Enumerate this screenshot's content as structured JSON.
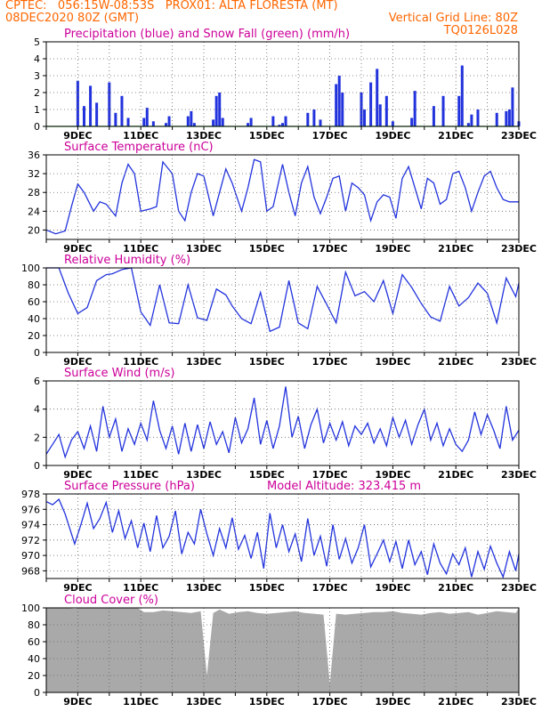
{
  "header": {
    "line1_left": "CPTEC:   056:15W-08:53S   PROX01: ALTA FLORESTA (MT)",
    "line2_left": "08DEC2020 80Z (GMT)",
    "line2_right": "Vertical Grid Line: 80Z",
    "line3_right": "TQ0126L028"
  },
  "colors": {
    "header": "#ff6600",
    "panel_title": "#cc0099",
    "series_line": "#2233dd",
    "precip_bars": "#2233dd",
    "snow_line": "#22aa22",
    "cloud_fill": "#a9a9a9"
  },
  "chart_data": [
    {
      "id": "precip",
      "type": "bar",
      "title": "Precipitation (blue) and Snow Fall (green) (mm/h)",
      "ylim": [
        0,
        5
      ],
      "yticks": [
        "0",
        "1",
        "2",
        "3",
        "4",
        "5"
      ],
      "xticks": [
        "9DEC",
        "11DEC",
        "13DEC",
        "15DEC",
        "17DEC",
        "19DEC",
        "21DEC",
        "23DEC"
      ],
      "grid": true,
      "series": [
        {
          "color": "#2233dd",
          "x": [
            9.0,
            9.2,
            9.4,
            9.6,
            10.0,
            10.2,
            10.4,
            10.6,
            11.1,
            11.2,
            11.4,
            11.8,
            11.9,
            12.5,
            12.6,
            12.7,
            13.3,
            13.4,
            13.5,
            13.6,
            14.4,
            14.5,
            15.2,
            15.4,
            15.5,
            15.6,
            16.3,
            16.5,
            16.7,
            17.2,
            17.3,
            17.4,
            18.0,
            18.1,
            18.3,
            18.5,
            18.6,
            18.8,
            19.0,
            19.6,
            19.7,
            20.3,
            20.6,
            21.1,
            21.2,
            21.4,
            21.5,
            21.7,
            22.3,
            22.6,
            22.7,
            22.8,
            23.0
          ],
          "values": [
            2.7,
            1.2,
            2.4,
            1.4,
            2.6,
            0.8,
            1.8,
            0.5,
            0.5,
            1.1,
            0.3,
            0.2,
            0.6,
            0.6,
            0.9,
            0.2,
            0.4,
            1.8,
            2.0,
            0.5,
            0.2,
            0.5,
            0.6,
            0.1,
            0.2,
            0.6,
            0.8,
            1.0,
            0.4,
            2.5,
            3.0,
            2.0,
            2.0,
            1.0,
            2.6,
            3.4,
            1.3,
            1.8,
            0.3,
            0.5,
            2.1,
            1.2,
            1.8,
            1.8,
            3.6,
            0.2,
            0.7,
            1.0,
            0.8,
            0.9,
            1.0,
            2.3,
            0.3
          ]
        },
        {
          "color": "#22aa22",
          "x": [
            8.0,
            23.0
          ],
          "values": [
            0,
            0
          ]
        }
      ]
    },
    {
      "id": "temperature",
      "type": "line",
      "title": "Surface Temperature (nC)",
      "ylim": [
        18,
        36
      ],
      "yticks": [
        "20",
        "24",
        "28",
        "32",
        "36"
      ],
      "xticks": [
        "9DEC",
        "11DEC",
        "13DEC",
        "15DEC",
        "17DEC",
        "19DEC",
        "21DEC",
        "23DEC"
      ],
      "grid": true,
      "series": [
        {
          "color": "#2233dd",
          "x": [
            8.0,
            8.3,
            8.6,
            8.8,
            9.0,
            9.2,
            9.5,
            9.7,
            9.9,
            10.2,
            10.4,
            10.6,
            10.8,
            11.0,
            11.3,
            11.5,
            11.7,
            12.0,
            12.2,
            12.4,
            12.6,
            12.8,
            13.0,
            13.3,
            13.5,
            13.7,
            13.9,
            14.2,
            14.4,
            14.6,
            14.8,
            15.0,
            15.2,
            15.5,
            15.7,
            15.9,
            16.1,
            16.3,
            16.5,
            16.7,
            16.9,
            17.1,
            17.3,
            17.5,
            17.7,
            17.9,
            18.1,
            18.3,
            18.5,
            18.7,
            18.9,
            19.1,
            19.3,
            19.5,
            19.7,
            19.9,
            20.1,
            20.3,
            20.5,
            20.7,
            20.9,
            21.1,
            21.3,
            21.5,
            21.7,
            21.9,
            22.1,
            22.3,
            22.5,
            22.7,
            23.0
          ],
          "values": [
            20.0,
            19.2,
            19.8,
            25.0,
            29.8,
            28.0,
            24.0,
            26.0,
            25.5,
            23.0,
            30.0,
            34.0,
            32.0,
            24.0,
            24.5,
            25.0,
            34.5,
            32.0,
            24.0,
            22.0,
            28.0,
            32.0,
            31.5,
            23.0,
            28.0,
            33.0,
            30.0,
            24.0,
            29.0,
            35.0,
            34.5,
            24.0,
            25.0,
            34.0,
            28.0,
            23.0,
            30.0,
            33.5,
            27.0,
            23.5,
            27.0,
            31.0,
            31.5,
            24.0,
            30.0,
            29.0,
            27.5,
            22.0,
            26.0,
            27.5,
            27.0,
            22.5,
            31.0,
            33.5,
            29.0,
            24.5,
            31.0,
            30.0,
            25.5,
            26.5,
            32.0,
            32.5,
            29.0,
            24.0,
            28.0,
            31.5,
            32.5,
            29.0,
            26.5,
            26.0,
            26.0
          ]
        }
      ]
    },
    {
      "id": "humidity",
      "type": "line",
      "title": "Relative Humidity (%)",
      "ylim": [
        0,
        100
      ],
      "yticks": [
        "0",
        "20",
        "40",
        "60",
        "80",
        "100"
      ],
      "xticks": [
        "9DEC",
        "11DEC",
        "13DEC",
        "15DEC",
        "17DEC",
        "19DEC",
        "21DEC",
        "23DEC"
      ],
      "grid": true,
      "series": [
        {
          "color": "#2233dd",
          "x": [
            8.0,
            8.4,
            8.7,
            9.0,
            9.3,
            9.6,
            9.9,
            10.1,
            10.4,
            10.7,
            11.0,
            11.3,
            11.6,
            11.9,
            12.2,
            12.5,
            12.8,
            13.1,
            13.4,
            13.7,
            13.9,
            14.2,
            14.5,
            14.8,
            15.1,
            15.4,
            15.7,
            16.0,
            16.3,
            16.6,
            16.9,
            17.2,
            17.5,
            17.8,
            18.1,
            18.4,
            18.7,
            19.0,
            19.3,
            19.6,
            19.9,
            20.2,
            20.5,
            20.8,
            21.1,
            21.4,
            21.7,
            22.0,
            22.3,
            22.6,
            22.9,
            23.0
          ],
          "values": [
            100,
            100,
            70,
            46,
            53,
            85,
            92,
            93,
            98,
            100,
            48,
            32,
            80,
            35,
            34,
            80,
            41,
            38,
            75,
            68,
            55,
            40,
            34,
            71,
            25,
            30,
            85,
            35,
            28,
            78,
            57,
            35,
            95,
            67,
            72,
            60,
            85,
            46,
            92,
            77,
            58,
            42,
            37,
            78,
            55,
            65,
            82,
            70,
            35,
            88,
            66,
            82
          ]
        }
      ]
    },
    {
      "id": "wind",
      "type": "line",
      "title": "Surface Wind (m/s)",
      "ylim": [
        0,
        6
      ],
      "yticks": [
        "0",
        "2",
        "4",
        "6"
      ],
      "xticks": [
        "9DEC",
        "11DEC",
        "13DEC",
        "15DEC",
        "17DEC",
        "19DEC",
        "21DEC",
        "23DEC"
      ],
      "grid": true,
      "series": [
        {
          "color": "#2233dd",
          "x": [
            8.0,
            8.2,
            8.4,
            8.6,
            8.8,
            9.0,
            9.2,
            9.4,
            9.6,
            9.8,
            10.0,
            10.2,
            10.4,
            10.6,
            10.8,
            11.0,
            11.2,
            11.4,
            11.6,
            11.8,
            12.0,
            12.2,
            12.4,
            12.6,
            12.8,
            13.0,
            13.2,
            13.4,
            13.6,
            13.8,
            14.0,
            14.2,
            14.4,
            14.6,
            14.8,
            15.0,
            15.2,
            15.4,
            15.6,
            15.8,
            16.0,
            16.2,
            16.4,
            16.6,
            16.8,
            17.0,
            17.2,
            17.4,
            17.6,
            17.8,
            18.0,
            18.2,
            18.4,
            18.6,
            18.8,
            19.0,
            19.2,
            19.4,
            19.6,
            19.8,
            20.0,
            20.2,
            20.4,
            20.6,
            20.8,
            21.0,
            21.2,
            21.4,
            21.6,
            21.8,
            22.0,
            22.2,
            22.4,
            22.6,
            22.8,
            23.0
          ],
          "values": [
            0.8,
            1.5,
            2.2,
            0.6,
            1.8,
            2.4,
            1.2,
            2.8,
            1.0,
            4.2,
            2.0,
            3.3,
            1.0,
            2.6,
            1.5,
            3.0,
            1.8,
            4.6,
            2.5,
            1.2,
            2.8,
            0.8,
            3.0,
            1.0,
            2.9,
            1.2,
            3.1,
            1.5,
            2.4,
            0.9,
            3.4,
            1.6,
            2.6,
            4.8,
            1.5,
            3.2,
            1.2,
            2.8,
            5.6,
            2.0,
            3.5,
            1.2,
            2.9,
            4.0,
            1.6,
            3.0,
            1.8,
            3.1,
            1.4,
            2.8,
            2.2,
            3.0,
            1.6,
            2.6,
            1.4,
            3.4,
            2.0,
            3.2,
            1.5,
            2.9,
            4.0,
            1.8,
            3.0,
            1.4,
            2.6,
            1.5,
            1.0,
            1.8,
            3.8,
            2.2,
            3.6,
            2.5,
            1.2,
            4.2,
            1.8,
            2.5
          ]
        }
      ]
    },
    {
      "id": "pressure",
      "type": "line",
      "title": "Surface Pressure (hPa)",
      "annotation": "Model Altitude: 323.415 m",
      "ylim": [
        967,
        978
      ],
      "yticks": [
        "968",
        "970",
        "972",
        "974",
        "976",
        "978"
      ],
      "xticks": [
        "9DEC",
        "11DEC",
        "13DEC",
        "15DEC",
        "17DEC",
        "19DEC",
        "21DEC",
        "23DEC"
      ],
      "grid": true,
      "series": [
        {
          "color": "#2233dd",
          "x": [
            8.0,
            8.2,
            8.4,
            8.6,
            8.9,
            9.1,
            9.3,
            9.5,
            9.7,
            9.9,
            10.1,
            10.3,
            10.5,
            10.7,
            10.9,
            11.1,
            11.3,
            11.5,
            11.7,
            11.9,
            12.1,
            12.3,
            12.5,
            12.7,
            12.9,
            13.1,
            13.3,
            13.5,
            13.7,
            13.9,
            14.1,
            14.3,
            14.5,
            14.7,
            14.9,
            15.1,
            15.3,
            15.5,
            15.7,
            15.9,
            16.1,
            16.3,
            16.5,
            16.7,
            16.9,
            17.1,
            17.3,
            17.5,
            17.7,
            17.9,
            18.1,
            18.3,
            18.5,
            18.7,
            18.9,
            19.1,
            19.3,
            19.5,
            19.7,
            19.9,
            20.1,
            20.3,
            20.5,
            20.7,
            20.9,
            21.1,
            21.3,
            21.5,
            21.7,
            21.9,
            22.1,
            22.3,
            22.5,
            22.7,
            22.9,
            23.0
          ],
          "values": [
            977.0,
            976.6,
            977.3,
            975.4,
            971.5,
            974.0,
            976.8,
            973.5,
            974.8,
            976.9,
            973.0,
            975.8,
            972.2,
            974.5,
            971.0,
            974.2,
            970.5,
            975.2,
            971.0,
            972.5,
            975.8,
            970.2,
            973.0,
            971.5,
            976.0,
            972.8,
            970.0,
            973.5,
            971.0,
            974.9,
            970.8,
            972.6,
            969.6,
            973.0,
            968.3,
            975.5,
            971.0,
            974.0,
            970.5,
            972.8,
            969.2,
            974.8,
            970.0,
            972.5,
            968.6,
            974.0,
            969.5,
            972.2,
            969.0,
            971.0,
            974.0,
            968.5,
            970.2,
            972.0,
            969.2,
            971.8,
            968.3,
            972.0,
            968.8,
            970.5,
            967.5,
            971.5,
            969.0,
            967.6,
            970.2,
            968.8,
            971.0,
            967.2,
            970.5,
            968.2,
            971.2,
            969.0,
            967.2,
            970.5,
            968.0,
            970.2
          ]
        }
      ]
    },
    {
      "id": "cloud",
      "type": "area",
      "title": "Cloud Cover (%)",
      "ylim": [
        0,
        100
      ],
      "yticks": [
        "0",
        "20",
        "40",
        "60",
        "80",
        "100"
      ],
      "xticks": [
        "9DEC",
        "11DEC",
        "13DEC",
        "15DEC",
        "17DEC",
        "19DEC",
        "21DEC",
        "23DEC"
      ],
      "grid": true,
      "series": [
        {
          "color": "#a9a9a9",
          "x": [
            8.0,
            8.3,
            8.6,
            8.9,
            9.2,
            9.5,
            9.8,
            10.1,
            10.4,
            10.7,
            10.9,
            11.1,
            11.4,
            11.7,
            12.0,
            12.3,
            12.6,
            12.9,
            13.1,
            13.3,
            13.5,
            13.8,
            14.1,
            14.4,
            14.7,
            15.0,
            15.3,
            15.6,
            15.9,
            16.2,
            16.5,
            16.8,
            17.0,
            17.2,
            17.5,
            17.8,
            18.1,
            18.4,
            18.7,
            19.0,
            19.3,
            19.6,
            19.9,
            20.2,
            20.5,
            20.8,
            21.1,
            21.4,
            21.7,
            22.0,
            22.3,
            22.6,
            22.9,
            23.0
          ],
          "values": [
            100,
            100,
            100,
            99,
            100,
            100,
            100,
            100,
            100,
            100,
            100,
            95,
            95,
            97,
            96,
            95,
            94,
            96,
            20,
            94,
            98,
            93,
            95,
            96,
            94,
            93,
            94,
            95,
            96,
            94,
            93,
            92,
            10,
            93,
            92,
            93,
            94,
            95,
            95,
            96,
            94,
            93,
            92,
            94,
            95,
            93,
            94,
            95,
            92,
            94,
            96,
            95,
            94,
            100
          ]
        }
      ]
    }
  ]
}
